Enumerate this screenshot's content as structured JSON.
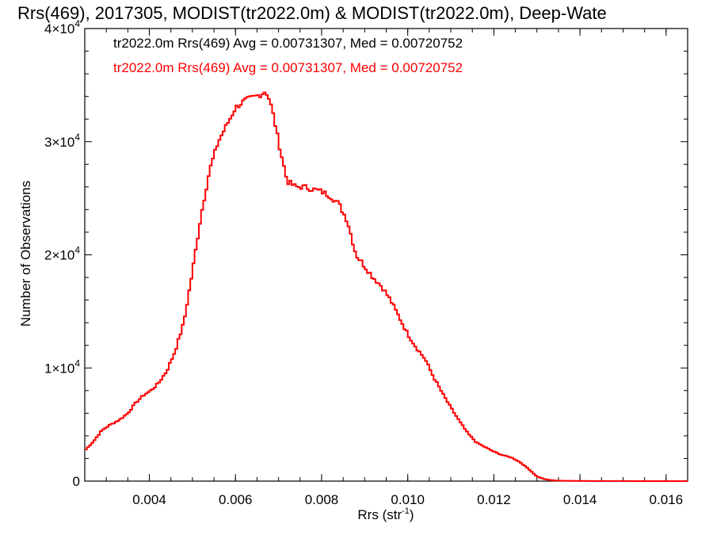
{
  "chart_data": {
    "type": "line",
    "title": "Rrs(469), 2017305, MODIST(tr2022.0m) & MODIST(tr2022.0m), Deep-Wate",
    "xlabel": "Rrs (str",
    "xlabel_sup": "-1",
    "xlabel_close": ")",
    "ylabel": "Number of Observations",
    "xlim": [
      0.0025,
      0.0165
    ],
    "ylim": [
      0,
      40000
    ],
    "x_ticks": [
      0.004,
      0.006,
      0.008,
      0.01,
      0.012,
      0.014,
      0.016
    ],
    "x_tick_labels": [
      "0.004",
      "0.006",
      "0.008",
      "0.010",
      "0.012",
      "0.014",
      "0.016"
    ],
    "y_ticks": [
      {
        "value": 0,
        "label": "0",
        "sup": ""
      },
      {
        "value": 10000,
        "label": "1×10",
        "sup": "4"
      },
      {
        "value": 20000,
        "label": "2×10",
        "sup": "4"
      },
      {
        "value": 30000,
        "label": "3×10",
        "sup": "4"
      },
      {
        "value": 40000,
        "label": "4×10",
        "sup": "4"
      }
    ],
    "grid": false,
    "annotations": [
      {
        "text": "tr2022.0m Rrs(469) Avg = 0.00731307, Med = 0.00720752",
        "color": "#000000"
      },
      {
        "text": "tr2022.0m Rrs(469) Avg = 0.00731307, Med = 0.00720752",
        "color": "#ff0000"
      }
    ],
    "series": [
      {
        "color": "#ff0000",
        "x": [
          0.0025,
          0.0027,
          0.0029,
          0.0031,
          0.0033,
          0.0035,
          0.0037,
          0.0039,
          0.004,
          0.0042,
          0.0044,
          0.0046,
          0.0048,
          0.005,
          0.0052,
          0.0054,
          0.0056,
          0.0058,
          0.006,
          0.0062,
          0.0064,
          0.0066,
          0.0067,
          0.0068,
          0.0069,
          0.007,
          0.0072,
          0.0074,
          0.0076,
          0.0078,
          0.008,
          0.0082,
          0.0084,
          0.0086,
          0.0088,
          0.009,
          0.0092,
          0.0094,
          0.0096,
          0.0098,
          0.01,
          0.0102,
          0.0104,
          0.0106,
          0.0108,
          0.011,
          0.0112,
          0.0114,
          0.0116,
          0.0118,
          0.012,
          0.0122,
          0.0124,
          0.0126,
          0.0128,
          0.013,
          0.0132,
          0.0134,
          0.0136,
          0.014,
          0.0145,
          0.015,
          0.0155,
          0.016,
          0.0165
        ],
        "values": [
          2700,
          3500,
          4500,
          5000,
          5400,
          6000,
          7000,
          7700,
          7900,
          8600,
          9700,
          11500,
          14000,
          18500,
          23500,
          27500,
          30000,
          31500,
          33000,
          33600,
          33900,
          34200,
          34500,
          33600,
          32000,
          30000,
          26500,
          26000,
          26000,
          25800,
          25600,
          25200,
          24500,
          23000,
          20000,
          19000,
          18000,
          17200,
          16000,
          14500,
          13000,
          11800,
          10800,
          9200,
          7800,
          6500,
          5300,
          4200,
          3400,
          3000,
          2600,
          2300,
          2100,
          1700,
          1100,
          400,
          150,
          60,
          30,
          15,
          8,
          5,
          3,
          2,
          0
        ]
      }
    ]
  }
}
